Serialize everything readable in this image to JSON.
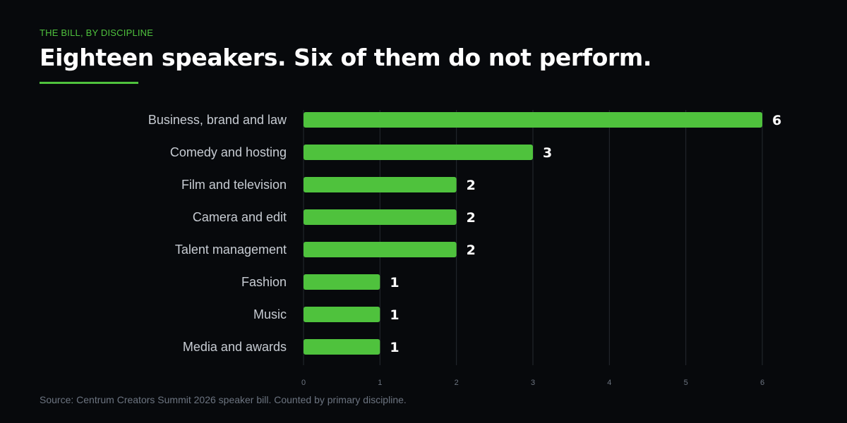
{
  "header": {
    "eyebrow": "THE BILL, BY DISCIPLINE",
    "title": "Eighteen speakers. Six of them do not perform."
  },
  "footer": {
    "source": "Source: Centrum Creators Summit 2026 speaker bill. Counted by primary discipline."
  },
  "colors": {
    "background": "#07090c",
    "bar": "#4fc23d",
    "accent": "#4fc23d",
    "category_label": "#c7ccd3",
    "value_label": "#ffffff",
    "grid": "#262a31",
    "tick": "#6c7480"
  },
  "chart_data": {
    "type": "bar",
    "orientation": "horizontal",
    "categories": [
      "Business, brand and law",
      "Comedy and hosting",
      "Film and television",
      "Camera and edit",
      "Talent management",
      "Fashion",
      "Music",
      "Media and awards"
    ],
    "values": [
      6,
      3,
      2,
      2,
      2,
      1,
      1,
      1
    ],
    "xlim": [
      0,
      6
    ],
    "x_ticks": [
      0,
      1,
      2,
      3,
      4,
      5,
      6
    ],
    "grid": true,
    "data_labels": true,
    "legend": "none"
  }
}
